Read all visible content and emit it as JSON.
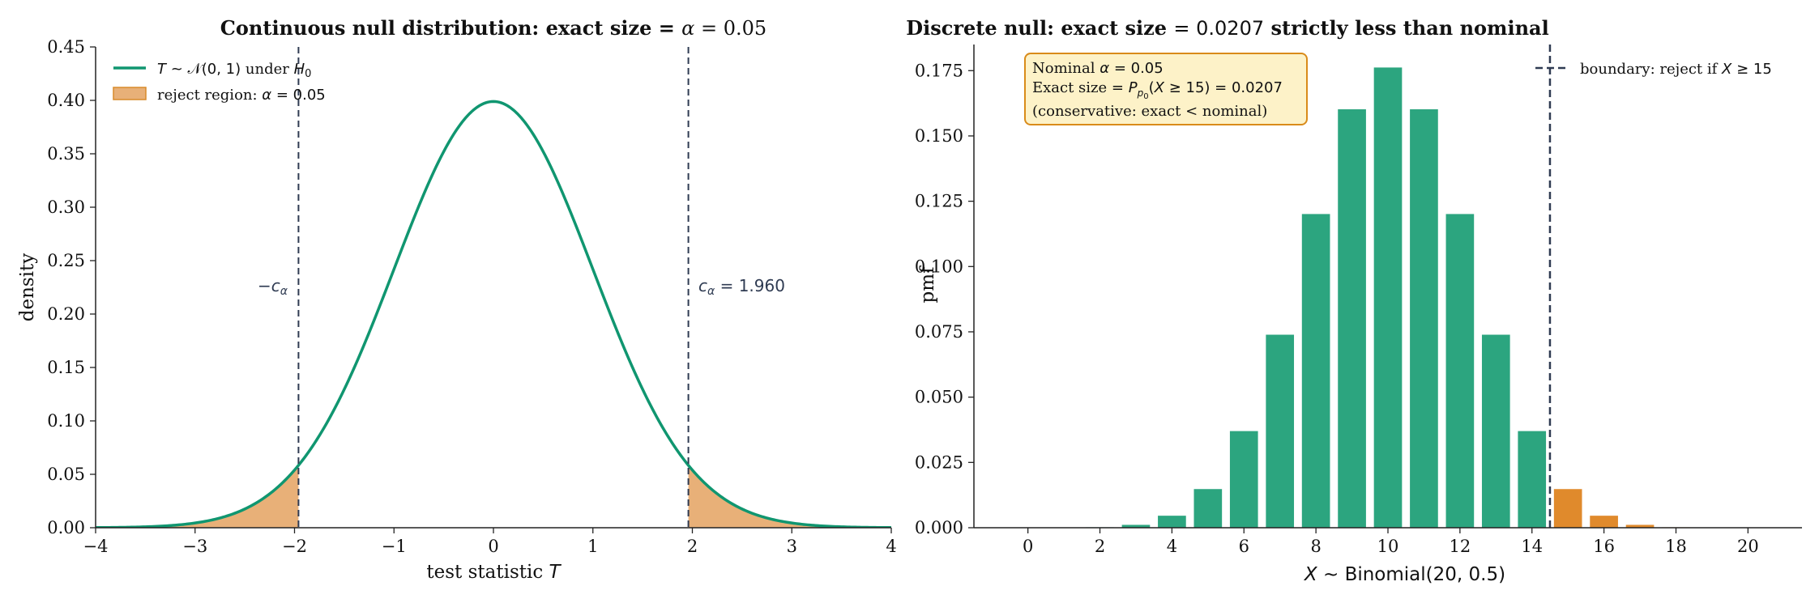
{
  "colors": {
    "curve": "#109670",
    "tail_fill": "#e8b078",
    "tail_edge": "#d98b2a",
    "bar_green": "#2ca57f",
    "bar_orange": "#e08a2c",
    "boundary": "#2f3b52",
    "annot_box_fill": "#fdf2c8",
    "annot_box_edge": "#d98b1a"
  },
  "chart_data": [
    {
      "type": "line",
      "title": "Continuous null distribution: exact size = α = 0.05",
      "xlabel": "test statistic T",
      "ylabel": "density",
      "xlim": [
        -4,
        4
      ],
      "ylim": [
        0,
        0.45
      ],
      "xticks": [
        "−4",
        "−3",
        "−2",
        "−1",
        "0",
        "1",
        "2",
        "3",
        "4"
      ],
      "yticks": [
        "0.00",
        "0.05",
        "0.10",
        "0.15",
        "0.20",
        "0.25",
        "0.30",
        "0.35",
        "0.40",
        "0.45"
      ],
      "curve": {
        "name": "T ~ 𝒩(0, 1) under H₀",
        "x": [
          -4,
          -3.75,
          -3.5,
          -3.25,
          -3,
          -2.75,
          -2.5,
          -2.25,
          -2,
          -1.75,
          -1.5,
          -1.25,
          -1,
          -0.75,
          -0.5,
          -0.25,
          0,
          0.25,
          0.5,
          0.75,
          1,
          1.25,
          1.5,
          1.75,
          2,
          2.25,
          2.5,
          2.75,
          3,
          3.25,
          3.5,
          3.75,
          4
        ],
        "y": [
          0.0001,
          0.0004,
          0.0009,
          0.002,
          0.0044,
          0.0091,
          0.0175,
          0.0317,
          0.054,
          0.0863,
          0.1295,
          0.1826,
          0.242,
          0.3011,
          0.3521,
          0.3867,
          0.3989,
          0.3867,
          0.3521,
          0.3011,
          0.242,
          0.1826,
          0.1295,
          0.0863,
          0.054,
          0.0317,
          0.0175,
          0.0091,
          0.0044,
          0.002,
          0.0009,
          0.0004,
          0.0001
        ]
      },
      "reject_region": {
        "name": "reject region: α = 0.05",
        "critical_value": 1.96
      },
      "critical_lines": [
        -1.96,
        1.96
      ],
      "annotations": {
        "left": "−c_α",
        "right": "c_α = 1.960"
      },
      "legend_position": "top-left",
      "grid": false
    },
    {
      "type": "bar",
      "title": "Discrete null: exact size = 0.0207 strictly less than nominal",
      "xlabel": "X ~ Binomial(20, 0.5)",
      "ylabel": "pmf",
      "xlim": [
        -1.5,
        21.5
      ],
      "ylim": [
        0,
        0.185
      ],
      "xticks": [
        "0",
        "2",
        "4",
        "6",
        "8",
        "10",
        "12",
        "14",
        "16",
        "18",
        "20"
      ],
      "yticks": [
        "0.000",
        "0.025",
        "0.050",
        "0.075",
        "0.100",
        "0.125",
        "0.150",
        "0.175"
      ],
      "x": [
        0,
        1,
        2,
        3,
        4,
        5,
        6,
        7,
        8,
        9,
        10,
        11,
        12,
        13,
        14,
        15,
        16,
        17,
        18,
        19,
        20
      ],
      "values": [
        1e-06,
        1.9e-05,
        0.00018,
        0.0011,
        0.0046,
        0.0148,
        0.037,
        0.0739,
        0.1201,
        0.1602,
        0.1762,
        0.1602,
        0.1201,
        0.0739,
        0.037,
        0.0148,
        0.0046,
        0.0011,
        0.00018,
        1.9e-05,
        1e-06
      ],
      "reject_from": 15,
      "boundary": {
        "x": 14.5,
        "label": "boundary: reject if X ≥ 15"
      },
      "annotation_box": [
        "Nominal α = 0.05",
        "Exact size = P_{p₀}(X ≥ 15) = 0.0207",
        "(conservative: exact < nominal)"
      ],
      "legend_position": "top-right",
      "grid": false
    }
  ]
}
